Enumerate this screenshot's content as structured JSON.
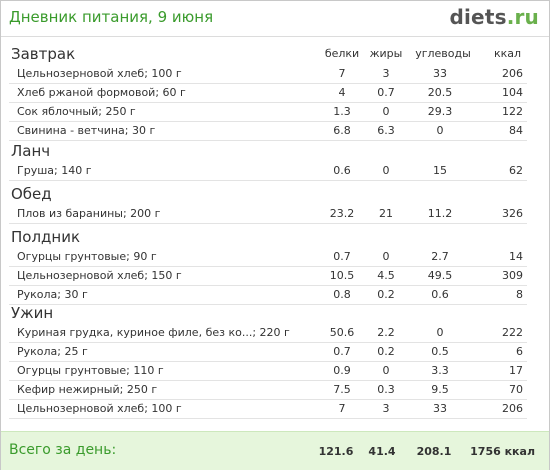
{
  "header": {
    "title": "Дневник питания, 9 июня",
    "logo_main": "diets",
    "logo_tld": ".ru"
  },
  "columns": {
    "protein": "белки",
    "fat": "жиры",
    "carbs": "углеводы",
    "kcal": "ккал"
  },
  "meals": [
    {
      "title": "Завтрак",
      "items": [
        {
          "name": "Цельнозерновой хлеб; 100 г",
          "protein": "7",
          "fat": "3",
          "carbs": "33",
          "kcal": "206"
        },
        {
          "name": "Хлеб ржаной формовой; 60 г",
          "protein": "4",
          "fat": "0.7",
          "carbs": "20.5",
          "kcal": "104"
        },
        {
          "name": "Сок яблочный; 250 г",
          "protein": "1.3",
          "fat": "0",
          "carbs": "29.3",
          "kcal": "122"
        },
        {
          "name": "Свинина - ветчина; 30 г",
          "protein": "6.8",
          "fat": "6.3",
          "carbs": "0",
          "kcal": "84"
        }
      ]
    },
    {
      "title": "Ланч",
      "items": [
        {
          "name": "Груша; 140 г",
          "protein": "0.6",
          "fat": "0",
          "carbs": "15",
          "kcal": "62"
        }
      ]
    },
    {
      "title": "Обед",
      "items": [
        {
          "name": "Плов из баранины; 200 г",
          "protein": "23.2",
          "fat": "21",
          "carbs": "11.2",
          "kcal": "326"
        }
      ]
    },
    {
      "title": "Полдник",
      "items": [
        {
          "name": "Огурцы грунтовые; 90 г",
          "protein": "0.7",
          "fat": "0",
          "carbs": "2.7",
          "kcal": "14"
        },
        {
          "name": "Цельнозерновой хлеб; 150 г",
          "protein": "10.5",
          "fat": "4.5",
          "carbs": "49.5",
          "kcal": "309"
        },
        {
          "name": "Рукола; 30 г",
          "protein": "0.8",
          "fat": "0.2",
          "carbs": "0.6",
          "kcal": "8"
        }
      ]
    },
    {
      "title": "Ужин",
      "items": [
        {
          "name": "Куриная грудка, куриное филе, без ко...; 220 г",
          "protein": "50.6",
          "fat": "2.2",
          "carbs": "0",
          "kcal": "222"
        },
        {
          "name": "Рукола; 25 г",
          "protein": "0.7",
          "fat": "0.2",
          "carbs": "0.5",
          "kcal": "6"
        },
        {
          "name": "Огурцы грунтовые; 110 г",
          "protein": "0.9",
          "fat": "0",
          "carbs": "3.3",
          "kcal": "17"
        },
        {
          "name": "Кефир нежирный; 250 г",
          "protein": "7.5",
          "fat": "0.3",
          "carbs": "9.5",
          "kcal": "70"
        },
        {
          "name": "Цельнозерновой хлеб; 100 г",
          "protein": "7",
          "fat": "3",
          "carbs": "33",
          "kcal": "206"
        }
      ]
    }
  ],
  "totals": {
    "label": "Всего за день:",
    "protein": "121.6",
    "fat": "41.4",
    "carbs": "208.1",
    "kcal": "1756 ккал"
  }
}
